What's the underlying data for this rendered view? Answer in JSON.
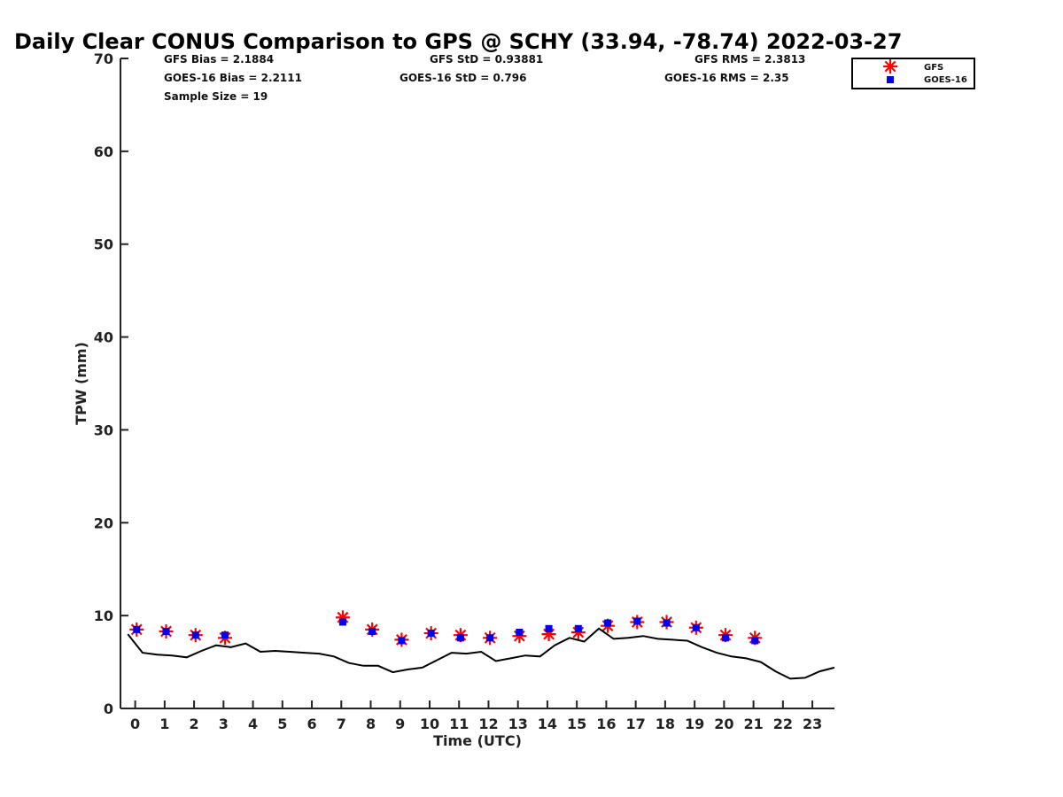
{
  "chart_data": {
    "type": "scatter",
    "title": "Daily Clear CONUS Comparison to GPS @ SCHY (33.94, -78.74) 2022-03-27",
    "xlabel": "Time (UTC)",
    "ylabel": "TPW (mm)",
    "xlim": [
      -0.5,
      23.75
    ],
    "ylim": [
      0,
      70
    ],
    "x_ticks": [
      0,
      1,
      2,
      3,
      4,
      5,
      6,
      7,
      8,
      9,
      10,
      11,
      12,
      13,
      14,
      15,
      16,
      17,
      18,
      19,
      20,
      21,
      22,
      23
    ],
    "y_ticks": [
      0,
      10,
      20,
      30,
      40,
      50,
      60,
      70
    ],
    "grid": false,
    "legend_position": "top-right",
    "stats": {
      "gfs_bias": "GFS Bias = 2.1884",
      "gfs_std": "GFS StD = 0.93881",
      "gfs_rms": "GFS RMS = 2.3813",
      "goes_bias": "GOES-16 Bias = 2.2111",
      "goes_std": "GOES-16 StD = 0.796",
      "goes_rms": "GOES-16 RMS = 2.35",
      "sample_size": "Sample Size = 19"
    },
    "series": [
      {
        "name": "GFS",
        "marker": "asterisk",
        "color": "#ff0000",
        "x": [
          0.05,
          1.05,
          2.05,
          3.05,
          7.05,
          8.05,
          9.05,
          10.05,
          11.05,
          12.05,
          13.05,
          14.05,
          15.05,
          16.05,
          17.05,
          18.05,
          19.05,
          20.05,
          21.05
        ],
        "y": [
          8.5,
          8.3,
          7.9,
          7.6,
          9.8,
          8.5,
          7.4,
          8.1,
          7.9,
          7.6,
          7.8,
          8.0,
          8.2,
          8.9,
          9.3,
          9.3,
          8.7,
          7.9,
          7.6
        ]
      },
      {
        "name": "GOES-16",
        "marker": "square",
        "color": "#0000ee",
        "x": [
          0.05,
          1.05,
          2.05,
          3.05,
          7.05,
          8.05,
          9.05,
          10.05,
          11.05,
          12.05,
          13.05,
          14.05,
          15.05,
          16.05,
          17.05,
          18.05,
          19.05,
          20.05,
          21.05
        ],
        "y": [
          8.5,
          8.3,
          7.9,
          7.9,
          9.3,
          8.3,
          7.3,
          8.1,
          7.6,
          7.6,
          8.2,
          8.6,
          8.6,
          9.2,
          9.4,
          9.2,
          8.7,
          7.6,
          7.3
        ]
      },
      {
        "name": "",
        "marker": "line",
        "color": "#000000",
        "x": [
          -0.25,
          0.25,
          0.75,
          1.25,
          1.75,
          2.25,
          2.75,
          3.25,
          3.75,
          4.25,
          4.75,
          5.25,
          5.75,
          6.25,
          6.75,
          7.25,
          7.75,
          8.25,
          8.75,
          9.25,
          9.75,
          10.25,
          10.75,
          11.25,
          11.75,
          12.25,
          12.75,
          13.25,
          13.75,
          14.25,
          14.75,
          15.25,
          15.75,
          16.25,
          16.75,
          17.25,
          17.75,
          18.25,
          18.75,
          19.25,
          19.75,
          20.25,
          20.75,
          21.25,
          21.75,
          22.25,
          22.75,
          23.25,
          23.75
        ],
        "y": [
          8.0,
          6.0,
          5.8,
          5.7,
          5.5,
          6.2,
          6.8,
          6.6,
          7.0,
          6.1,
          6.2,
          6.1,
          6.0,
          5.9,
          5.6,
          4.9,
          4.6,
          4.6,
          3.9,
          4.2,
          4.4,
          5.2,
          6.0,
          5.9,
          6.1,
          5.1,
          5.4,
          5.7,
          5.6,
          6.8,
          7.6,
          7.2,
          8.6,
          7.5,
          7.6,
          7.8,
          7.5,
          7.4,
          7.3,
          6.6,
          6.0,
          5.6,
          5.4,
          5.0,
          4.0,
          3.2,
          3.3,
          4.0,
          4.4
        ]
      }
    ]
  }
}
